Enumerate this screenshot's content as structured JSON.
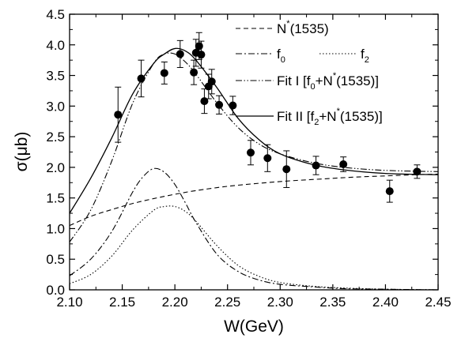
{
  "chart_data": {
    "type": "scatter",
    "xlabel": "W(GeV)",
    "ylabel": "σ(μb)",
    "xlim": [
      2.1,
      2.45
    ],
    "ylim": [
      0.0,
      4.5
    ],
    "x_ticks": [
      "2.10",
      "2.15",
      "2.20",
      "2.25",
      "2.30",
      "2.35",
      "2.40",
      "2.45"
    ],
    "y_ticks": [
      "0.0",
      "0.5",
      "1.0",
      "1.5",
      "2.0",
      "2.5",
      "3.0",
      "3.5",
      "4.0",
      "4.5"
    ],
    "grid": false,
    "legend_position": "top-right",
    "data_points": [
      {
        "x": 2.146,
        "y": 2.86,
        "err": 0.45
      },
      {
        "x": 2.168,
        "y": 3.45,
        "err": 0.3
      },
      {
        "x": 2.19,
        "y": 3.54,
        "err": 0.18
      },
      {
        "x": 2.205,
        "y": 3.85,
        "err": 0.22
      },
      {
        "x": 2.218,
        "y": 3.55,
        "err": 0.2
      },
      {
        "x": 2.22,
        "y": 3.87,
        "err": 0.22
      },
      {
        "x": 2.223,
        "y": 3.98,
        "err": 0.22
      },
      {
        "x": 2.225,
        "y": 3.84,
        "err": 0.22
      },
      {
        "x": 2.228,
        "y": 3.08,
        "err": 0.2
      },
      {
        "x": 2.232,
        "y": 3.32,
        "err": 0.2
      },
      {
        "x": 2.235,
        "y": 3.4,
        "err": 0.2
      },
      {
        "x": 2.242,
        "y": 3.02,
        "err": 0.15
      },
      {
        "x": 2.255,
        "y": 3.01,
        "err": 0.15
      },
      {
        "x": 2.272,
        "y": 2.24,
        "err": 0.2
      },
      {
        "x": 2.288,
        "y": 2.15,
        "err": 0.22
      },
      {
        "x": 2.306,
        "y": 1.97,
        "err": 0.3
      },
      {
        "x": 2.334,
        "y": 2.03,
        "err": 0.15
      },
      {
        "x": 2.36,
        "y": 2.05,
        "err": 0.12
      },
      {
        "x": 2.404,
        "y": 1.61,
        "err": 0.18
      },
      {
        "x": 2.43,
        "y": 1.93,
        "err": 0.11
      }
    ],
    "series": [
      {
        "name": "N*(1535)",
        "style": "dashed",
        "x": [
          2.1,
          2.12,
          2.14,
          2.16,
          2.18,
          2.2,
          2.22,
          2.25,
          2.28,
          2.31,
          2.34,
          2.37,
          2.4,
          2.43,
          2.45
        ],
        "y": [
          1.05,
          1.2,
          1.31,
          1.41,
          1.49,
          1.56,
          1.62,
          1.69,
          1.74,
          1.78,
          1.81,
          1.84,
          1.86,
          1.88,
          1.89
        ]
      },
      {
        "name": "f0",
        "style": "dashdot",
        "x": [
          2.1,
          2.12,
          2.14,
          2.16,
          2.17,
          2.18,
          2.19,
          2.2,
          2.21,
          2.22,
          2.24,
          2.26,
          2.28,
          2.3,
          2.33,
          2.36,
          2.4,
          2.45
        ],
        "y": [
          0.23,
          0.5,
          0.95,
          1.6,
          1.85,
          1.98,
          1.92,
          1.72,
          1.42,
          1.1,
          0.58,
          0.3,
          0.16,
          0.09,
          0.05,
          0.02,
          0.01,
          0.0
        ]
      },
      {
        "name": "f2",
        "style": "dotted",
        "x": [
          2.1,
          2.12,
          2.14,
          2.16,
          2.18,
          2.19,
          2.2,
          2.21,
          2.22,
          2.24,
          2.26,
          2.28,
          2.3,
          2.33,
          2.36,
          2.4,
          2.45
        ],
        "y": [
          0.1,
          0.25,
          0.55,
          0.98,
          1.3,
          1.36,
          1.36,
          1.28,
          1.12,
          0.72,
          0.4,
          0.22,
          0.12,
          0.06,
          0.03,
          0.01,
          0.0
        ]
      },
      {
        "name": "Fit I [f0+N*(1535)]",
        "style": "dashdotdot",
        "x": [
          2.1,
          2.12,
          2.14,
          2.16,
          2.18,
          2.19,
          2.2,
          2.21,
          2.22,
          2.24,
          2.26,
          2.28,
          2.3,
          2.33,
          2.36,
          2.4,
          2.45
        ],
        "y": [
          0.78,
          1.3,
          2.1,
          3.05,
          3.7,
          3.85,
          3.85,
          3.72,
          3.52,
          3.05,
          2.65,
          2.38,
          2.22,
          2.08,
          2.0,
          1.95,
          1.93
        ]
      },
      {
        "name": "Fit II [f2+N*(1535)]",
        "style": "solid",
        "x": [
          2.1,
          2.12,
          2.14,
          2.16,
          2.18,
          2.19,
          2.2,
          2.21,
          2.22,
          2.24,
          2.26,
          2.28,
          2.3,
          2.33,
          2.36,
          2.4,
          2.45
        ],
        "y": [
          1.25,
          1.82,
          2.48,
          3.2,
          3.7,
          3.85,
          3.94,
          3.9,
          3.75,
          3.3,
          2.8,
          2.45,
          2.22,
          2.05,
          1.96,
          1.9,
          1.88
        ]
      }
    ],
    "legend_entries": [
      {
        "key": "n1535",
        "style": "dashed",
        "text": "N",
        "sup": "*",
        "rest": "(1535)"
      },
      {
        "key": "f0",
        "style": "dashdot",
        "text": "f",
        "sub": "0",
        "rest": ""
      },
      {
        "key": "f2",
        "style": "dotted",
        "text": "f",
        "sub": "2",
        "rest": ""
      },
      {
        "key": "fit1",
        "style": "dashdotdot",
        "text": "Fit I [f",
        "sub": "0",
        "mid": "+N",
        "sup": "*",
        "rest": "(1535)]"
      },
      {
        "key": "fit2",
        "style": "solid",
        "text": "Fit II [f",
        "sub": "2",
        "mid": "+N",
        "sup": "*",
        "rest": "(1535)]"
      }
    ]
  }
}
